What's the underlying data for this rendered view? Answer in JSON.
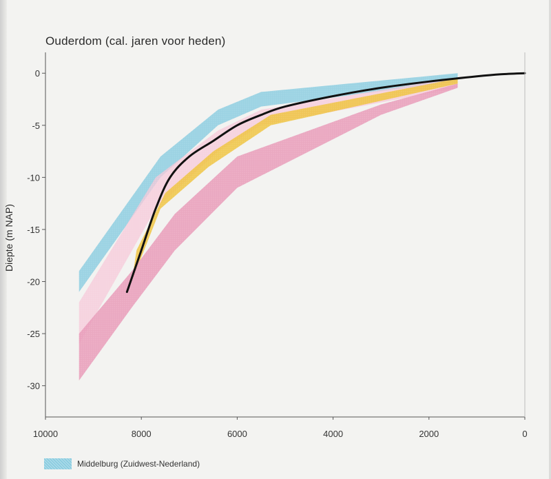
{
  "chart_data": {
    "type": "area",
    "title": "Ouderdom (cal. jaren voor heden)",
    "ylabel": "Diepte (m NAP)",
    "xlabel": "",
    "xlim": [
      10000,
      0
    ],
    "ylim": [
      -33,
      2
    ],
    "x_ticks": [
      10000,
      8000,
      6000,
      4000,
      2000,
      0
    ],
    "y_ticks": [
      0,
      -5,
      -10,
      -15,
      -20,
      -25,
      -30
    ],
    "grid": false,
    "legend_position": "bottom-left",
    "bands": [
      {
        "name": "Middelburg (Zuidwest-Nederland)",
        "color": "#8ccde0",
        "upper": [
          [
            9300,
            -19
          ],
          [
            7600,
            -8
          ],
          [
            6400,
            -3.5
          ],
          [
            5500,
            -1.8
          ],
          [
            1400,
            0
          ]
        ],
        "lower": [
          [
            9300,
            -21
          ],
          [
            7600,
            -10
          ],
          [
            6400,
            -5
          ],
          [
            5500,
            -3.2
          ],
          [
            1400,
            -0.8
          ]
        ]
      },
      {
        "name": "",
        "color": "#f7c8d8",
        "upper": [
          [
            9300,
            -22
          ],
          [
            7700,
            -10
          ],
          [
            6400,
            -5.5
          ],
          [
            5500,
            -3.5
          ],
          [
            1400,
            -0.4
          ]
        ],
        "lower": [
          [
            9300,
            -26
          ],
          [
            7700,
            -13
          ],
          [
            6400,
            -7.5
          ],
          [
            5500,
            -5
          ],
          [
            1400,
            -1.4
          ]
        ]
      },
      {
        "name": "",
        "color": "#eec33f",
        "upper": [
          [
            8100,
            -17
          ],
          [
            7500,
            -11.5
          ],
          [
            6500,
            -7.5
          ],
          [
            5300,
            -4
          ],
          [
            1400,
            -0.5
          ]
        ],
        "lower": [
          [
            8200,
            -20
          ],
          [
            7600,
            -13
          ],
          [
            6600,
            -9
          ],
          [
            5300,
            -5
          ],
          [
            1400,
            -1
          ]
        ]
      },
      {
        "name": "",
        "color": "#e79ab8",
        "upper": [
          [
            9300,
            -25
          ],
          [
            8200,
            -19
          ],
          [
            7300,
            -13.5
          ],
          [
            6000,
            -8
          ],
          [
            3000,
            -3
          ],
          [
            1400,
            -1
          ]
        ],
        "lower": [
          [
            9300,
            -29.5
          ],
          [
            8200,
            -22.5
          ],
          [
            7300,
            -17
          ],
          [
            6000,
            -11
          ],
          [
            3000,
            -4
          ],
          [
            1400,
            -1.4
          ]
        ]
      }
    ],
    "series": [
      {
        "name": "",
        "color": "#111111",
        "x": [
          8300,
          8000,
          7700,
          7400,
          7000,
          6500,
          6000,
          5500,
          5000,
          4000,
          3000,
          2000,
          1000,
          500,
          0
        ],
        "y": [
          -21,
          -17,
          -13,
          -10,
          -8,
          -6.5,
          -5,
          -4,
          -3.2,
          -2.2,
          -1.4,
          -0.8,
          -0.3,
          -0.1,
          0
        ]
      }
    ]
  },
  "legend": {
    "label": "Middelburg (Zuidwest-Nederland)",
    "color": "#8ccde0"
  }
}
